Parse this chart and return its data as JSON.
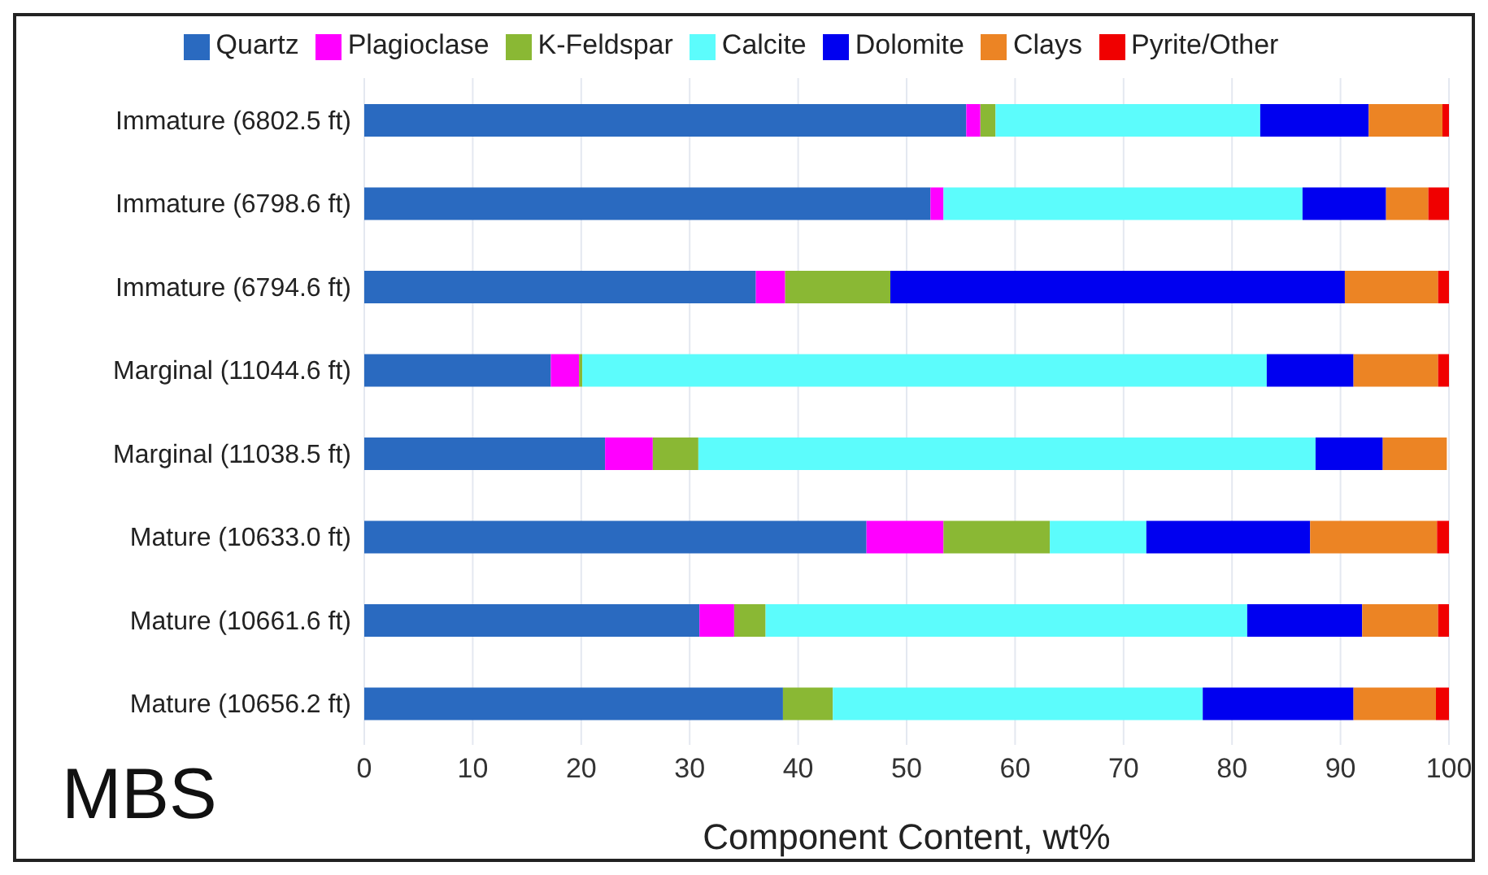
{
  "chart_data": {
    "type": "bar",
    "orientation": "horizontal",
    "stacked": true,
    "xlabel": "Component Content, wt%",
    "annotations": [
      "MBS"
    ],
    "categories": [
      "Immature (6802.5 ft)",
      "Immature (6798.6 ft)",
      "Immature (6794.6 ft)",
      "Marginal (11044.6 ft)",
      "Marginal (11038.5 ft)",
      "Mature (10633.0 ft)",
      "Mature (10661.6 ft)",
      "Mature (10656.2 ft)"
    ],
    "series": [
      {
        "name": "Quartz",
        "color": "#2a6ac0",
        "values": [
          55.5,
          52.2,
          36.1,
          17.2,
          22.2,
          46.3,
          30.9,
          38.6
        ]
      },
      {
        "name": "Plagioclase",
        "color": "#ff00ff",
        "values": [
          1.3,
          1.2,
          2.7,
          2.6,
          4.4,
          7.1,
          3.2,
          0
        ]
      },
      {
        "name": "K-Feldspar",
        "color": "#8ab834",
        "values": [
          1.4,
          0,
          9.7,
          0.3,
          4.2,
          9.8,
          2.9,
          4.6
        ]
      },
      {
        "name": "Calcite",
        "color": "#5cfcfc",
        "values": [
          24.4,
          33.1,
          0,
          63.1,
          56.9,
          8.9,
          44.4,
          34.1
        ]
      },
      {
        "name": "Dolomite",
        "color": "#0000f0",
        "values": [
          10.0,
          7.7,
          41.9,
          8.0,
          6.2,
          15.1,
          10.6,
          13.9
        ]
      },
      {
        "name": "Clays",
        "color": "#ec8424",
        "values": [
          6.8,
          3.9,
          8.6,
          7.8,
          5.9,
          11.7,
          7.0,
          7.6
        ]
      },
      {
        "name": "Pyrite/Other",
        "color": "#f00000",
        "values": [
          0.6,
          1.9,
          1.0,
          1.0,
          0,
          1.1,
          1.0,
          1.2
        ]
      }
    ],
    "xlim": [
      0,
      100
    ],
    "xticks": [
      0,
      10,
      20,
      30,
      40,
      50,
      60,
      70,
      80,
      90,
      100
    ],
    "grid": "x",
    "legend": "top"
  }
}
